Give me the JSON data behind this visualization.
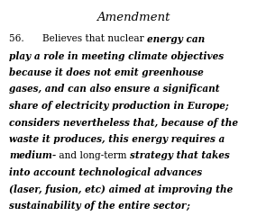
{
  "title": "Amendment",
  "background_color": "#ffffff",
  "text_color": "#000000",
  "title_fontsize": 9.5,
  "body_fontsize": 7.6,
  "lines": [
    [
      {
        "text": "56.      Believes that nuclear ",
        "style": "normal"
      },
      {
        "text": "energy can",
        "style": "bolditalic"
      }
    ],
    [
      {
        "text": "play a role in meeting climate objectives",
        "style": "bolditalic"
      }
    ],
    [
      {
        "text": "because it does not emit greenhouse",
        "style": "bolditalic"
      }
    ],
    [
      {
        "text": "gases, and can also ensure a significant",
        "style": "bolditalic"
      }
    ],
    [
      {
        "text": "share of electricity production in Europe;",
        "style": "bolditalic"
      }
    ],
    [
      {
        "text": "considers nevertheless that, because of the",
        "style": "bolditalic"
      }
    ],
    [
      {
        "text": "waste it produces, this energy requires a",
        "style": "bolditalic"
      }
    ],
    [
      {
        "text": "medium-",
        "style": "bolditalic"
      },
      {
        "text": " and long-term ",
        "style": "normal"
      },
      {
        "text": "strategy that takes",
        "style": "bolditalic"
      }
    ],
    [
      {
        "text": "into account technological advances",
        "style": "bolditalic"
      }
    ],
    [
      {
        "text": "(laser, fusion, etc) aimed at improving the",
        "style": "bolditalic"
      }
    ],
    [
      {
        "text": "sustainability of the entire sector",
        "style": "bolditalic"
      },
      {
        "text": ";",
        "style": "bolditalic"
      }
    ]
  ]
}
